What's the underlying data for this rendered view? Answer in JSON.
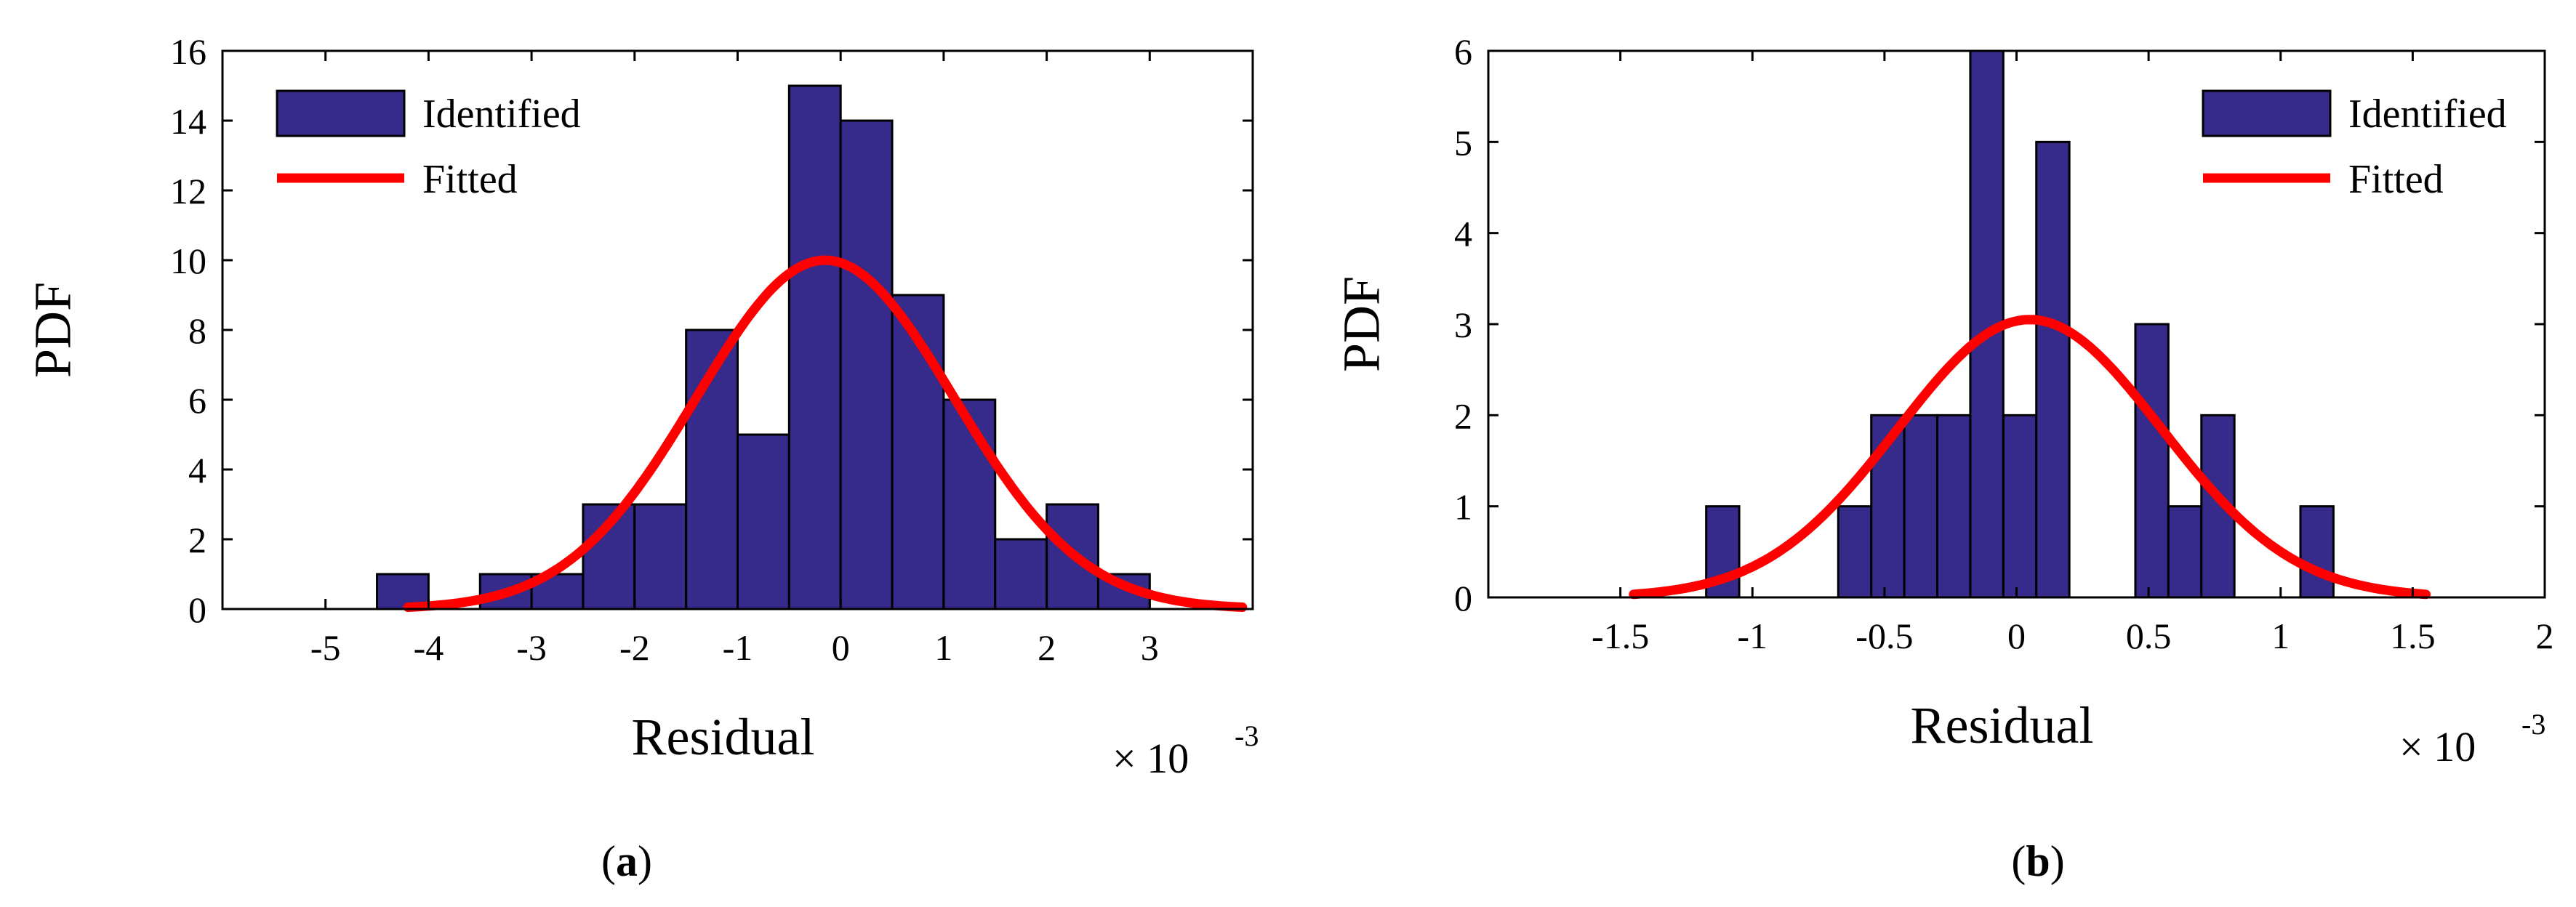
{
  "chart_data": [
    {
      "type": "bar",
      "panel": "(a)",
      "panel_letter": "a",
      "xlabel": "Residual",
      "ylabel": "PDF",
      "x_multiplier": "× 10",
      "x_multiplier_exp": "-3",
      "xlim": [
        -6,
        4
      ],
      "ylim": [
        0,
        16
      ],
      "xticks": [
        -5,
        -4,
        -3,
        -2,
        -1,
        0,
        1,
        2,
        3
      ],
      "yticks": [
        0,
        2,
        4,
        6,
        8,
        10,
        12,
        14,
        16
      ],
      "xtick_labels": [
        "-5",
        "-4",
        "-3",
        "-2",
        "-1",
        "0",
        "1",
        "2",
        "3"
      ],
      "ytick_labels": [
        "0",
        "2",
        "4",
        "6",
        "8",
        "10",
        "12",
        "14",
        "16"
      ],
      "bin_width": 0.5,
      "bin_left_edges": [
        -4.5,
        -4.0,
        -3.5,
        -3.0,
        -2.5,
        -2.0,
        -1.5,
        -1.0,
        -0.5,
        0.0,
        0.5,
        1.0,
        1.5,
        2.0,
        2.5
      ],
      "bin_values": [
        1,
        0,
        1,
        1,
        3,
        3,
        8,
        5,
        15,
        14,
        9,
        6,
        2,
        3,
        1
      ],
      "fitted_curve": {
        "type": "normal",
        "mean": -0.15,
        "sd": 1.25,
        "peak": 10,
        "x_range": [
          -4.2,
          3.9
        ]
      },
      "legend": [
        "Identified",
        "Fitted"
      ],
      "legend_position": "top-left",
      "colors": {
        "bars": "#362A8A",
        "curve": "#FF0000"
      }
    },
    {
      "type": "bar",
      "panel": "(b)",
      "panel_letter": "b",
      "xlabel": "Residual",
      "ylabel": "PDF",
      "x_multiplier": "× 10",
      "x_multiplier_exp": "-3",
      "xlim": [
        -2,
        2
      ],
      "ylim": [
        0,
        6
      ],
      "xticks": [
        -1.5,
        -1,
        -0.5,
        0,
        0.5,
        1,
        1.5,
        2
      ],
      "yticks": [
        0,
        1,
        2,
        3,
        4,
        5,
        6
      ],
      "xtick_labels": [
        "-1.5",
        "-1",
        "-0.5",
        "0",
        "0.5",
        "1",
        "1.5",
        "2"
      ],
      "ytick_labels": [
        "0",
        "1",
        "2",
        "3",
        "4",
        "5",
        "6"
      ],
      "bin_width": 0.125,
      "bin_left_edges": [
        -1.175,
        -1.05,
        -0.925,
        -0.8,
        -0.675,
        -0.55,
        -0.425,
        -0.3,
        -0.175,
        -0.05,
        0.075,
        0.2,
        0.325,
        0.45,
        0.575,
        0.7,
        0.825,
        0.95,
        1.075
      ],
      "bin_values": [
        1,
        0,
        0,
        0,
        1,
        2,
        2,
        2,
        6,
        2,
        5,
        0,
        0,
        3,
        1,
        2,
        0,
        0,
        1
      ],
      "fitted_curve": {
        "type": "normal",
        "mean": 0.05,
        "sd": 0.5,
        "peak": 3.05,
        "x_range": [
          -1.45,
          1.55
        ]
      },
      "legend": [
        "Identified",
        "Fitted"
      ],
      "legend_position": "top-right",
      "colors": {
        "bars": "#362A8A",
        "curve": "#FF0000"
      }
    }
  ]
}
